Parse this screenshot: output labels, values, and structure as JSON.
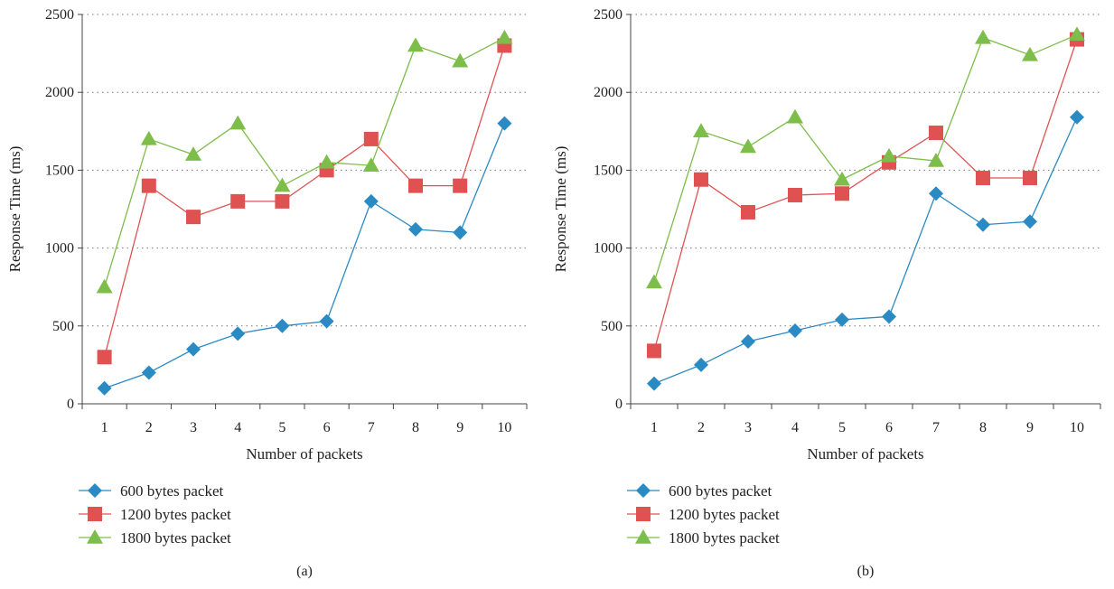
{
  "chart_data": [
    {
      "type": "line",
      "caption": "(a)",
      "xlabel": "Number of packets",
      "ylabel": "Response Time (ms)",
      "categories": [
        "1",
        "2",
        "3",
        "4",
        "5",
        "6",
        "7",
        "8",
        "9",
        "10"
      ],
      "yticks": [
        "0",
        "500",
        "1000",
        "1500",
        "2000",
        "2500"
      ],
      "ylim": [
        0,
        2500
      ],
      "grid": "horizontal dotted",
      "legend_position": "bottom-left",
      "series": [
        {
          "name": "600 bytes packet",
          "color": "#2a8ac4",
          "marker": "diamond",
          "values": [
            100,
            200,
            350,
            450,
            500,
            530,
            1300,
            1120,
            1100,
            1800
          ]
        },
        {
          "name": "1200 bytes packet",
          "color": "#e05252",
          "marker": "square",
          "values": [
            300,
            1400,
            1200,
            1300,
            1300,
            1500,
            1700,
            1400,
            1400,
            2300
          ]
        },
        {
          "name": "1800 bytes packet",
          "color": "#7dbd4a",
          "marker": "triangle",
          "values": [
            750,
            1700,
            1600,
            1800,
            1400,
            1550,
            1530,
            2300,
            2200,
            2350
          ]
        }
      ]
    },
    {
      "type": "line",
      "caption": "(b)",
      "xlabel": "Number of packets",
      "ylabel": "Response Time (ms)",
      "categories": [
        "1",
        "2",
        "3",
        "4",
        "5",
        "6",
        "7",
        "8",
        "9",
        "10"
      ],
      "yticks": [
        "0",
        "500",
        "1000",
        "1500",
        "2000",
        "2500"
      ],
      "ylim": [
        0,
        2500
      ],
      "grid": "horizontal dotted",
      "legend_position": "bottom-left",
      "series": [
        {
          "name": "600 bytes packet",
          "color": "#2a8ac4",
          "marker": "diamond",
          "values": [
            130,
            250,
            400,
            470,
            540,
            560,
            1350,
            1150,
            1170,
            1840
          ]
        },
        {
          "name": "1200 bytes packet",
          "color": "#e05252",
          "marker": "square",
          "values": [
            340,
            1440,
            1230,
            1340,
            1350,
            1550,
            1740,
            1450,
            1450,
            2340
          ]
        },
        {
          "name": "1800 bytes packet",
          "color": "#7dbd4a",
          "marker": "triangle",
          "values": [
            780,
            1750,
            1650,
            1840,
            1440,
            1590,
            1560,
            2350,
            2240,
            2370
          ]
        }
      ]
    }
  ]
}
